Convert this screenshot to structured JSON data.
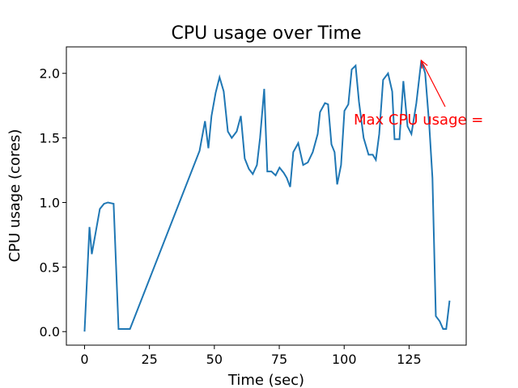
{
  "chart_data": {
    "type": "line",
    "title": "CPU usage over Time",
    "x_label": "Time (sec)",
    "y_label": "CPU usage (cores)",
    "annotation": "Max CPU usage =",
    "annotation_color": "red",
    "series": [
      {
        "color": "#1f77b4",
        "x": [
          0,
          1.9,
          2.8,
          5.9,
          7.5,
          9,
          11.2,
          13.1,
          15,
          17.5,
          44.3,
          46.4,
          47.7,
          48.9,
          50.5,
          52,
          53.6,
          55.2,
          56.7,
          58.6,
          60.2,
          61.7,
          63.3,
          64.8,
          66.4,
          67.6,
          69.2,
          70.4,
          72,
          73.6,
          75.1,
          76.7,
          77.9,
          79.2,
          80.4,
          82.3,
          84.2,
          86,
          87.9,
          89.8,
          90.7,
          92.6,
          93.8,
          95.1,
          96.3,
          97.3,
          98.8,
          100.1,
          101.6,
          102.9,
          104.4,
          105.7,
          107.5,
          109.4,
          111,
          112.2,
          113.5,
          115,
          116.9,
          118.5,
          119.4,
          121.3,
          122.8,
          124.4,
          125.9,
          127.8,
          129.7,
          131.2,
          132.8,
          134,
          135.3,
          136.8,
          138.1,
          139.3,
          140.6
        ],
        "values": [
          0,
          0.81,
          0.6,
          0.95,
          0.99,
          1.0,
          0.99,
          0.02,
          0.02,
          0.02,
          1.4,
          1.63,
          1.42,
          1.67,
          1.85,
          1.97,
          1.86,
          1.55,
          1.5,
          1.55,
          1.67,
          1.34,
          1.26,
          1.22,
          1.29,
          1.5,
          1.88,
          1.24,
          1.24,
          1.21,
          1.27,
          1.23,
          1.19,
          1.12,
          1.39,
          1.46,
          1.29,
          1.31,
          1.39,
          1.53,
          1.7,
          1.77,
          1.76,
          1.45,
          1.39,
          1.14,
          1.29,
          1.71,
          1.76,
          2.03,
          2.06,
          1.78,
          1.5,
          1.37,
          1.37,
          1.33,
          1.53,
          1.95,
          2.0,
          1.86,
          1.49,
          1.49,
          1.94,
          1.59,
          1.53,
          1.77,
          2.1,
          2.0,
          1.59,
          1.19,
          0.12,
          0.08,
          0.02,
          0.02,
          0.24
        ]
      }
    ],
    "xlim": [
      -7,
      147
    ],
    "ylim": [
      -0.105,
      2.205
    ],
    "xticks": [
      0,
      25,
      50,
      75,
      100,
      125
    ],
    "yticks": [
      {
        "value": 0,
        "label": "0.0"
      },
      {
        "value": 0.5,
        "label": "0.5"
      },
      {
        "value": 1,
        "label": "1.0"
      },
      {
        "value": 1.5,
        "label": "1.5"
      },
      {
        "value": 2,
        "label": "2.0"
      }
    ]
  }
}
